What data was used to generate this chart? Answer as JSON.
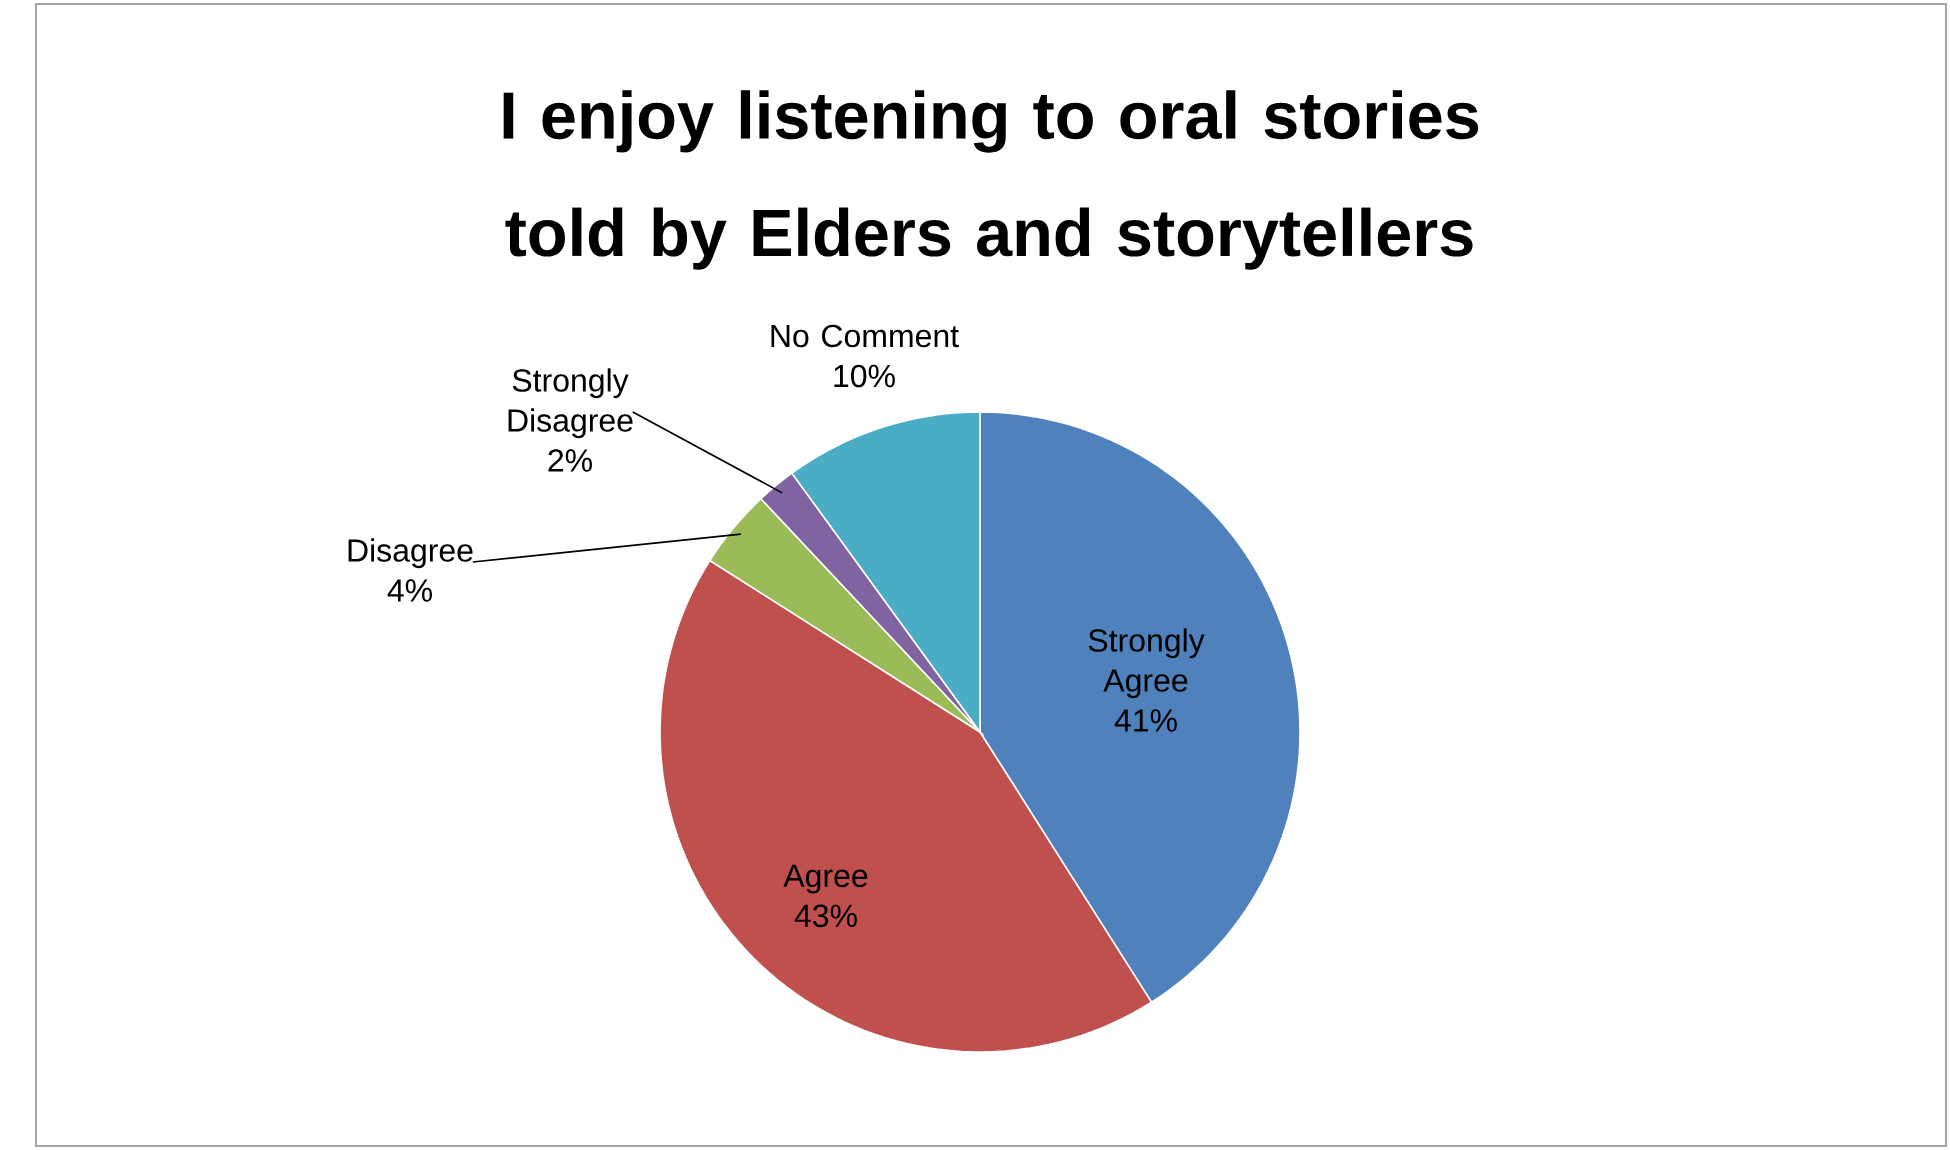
{
  "chart_data": {
    "type": "pie",
    "title": "I enjoy listening to oral stories told by Elders and storytellers",
    "categories": [
      "Strongly Agree",
      "Agree",
      "Disagree",
      "Strongly Disagree",
      "No Comment"
    ],
    "values": [
      41,
      43,
      4,
      2,
      10
    ],
    "value_labels": [
      "41%",
      "43%",
      "4%",
      "2%",
      "10%"
    ],
    "colors": [
      "#4f81bd",
      "#c0504d",
      "#9bbb59",
      "#8064a2",
      "#4bacc6"
    ],
    "legend": false
  }
}
